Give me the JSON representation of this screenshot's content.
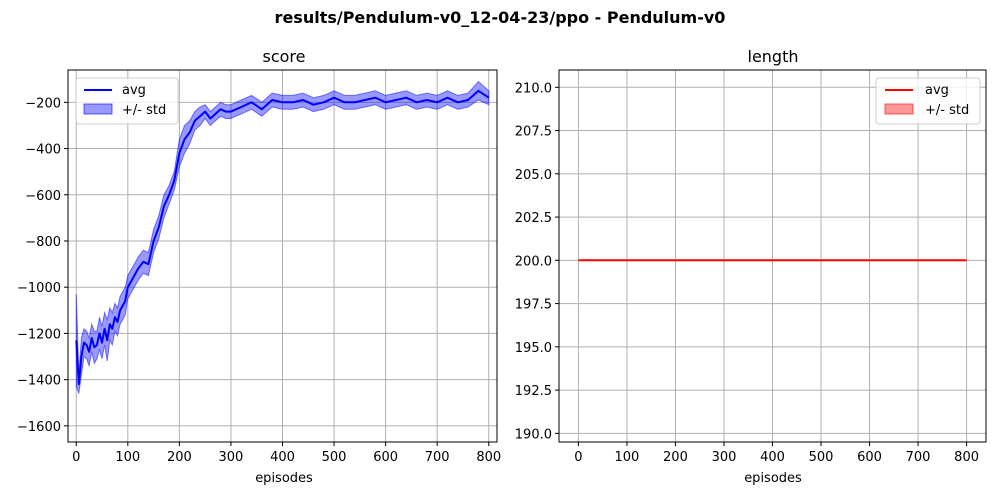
{
  "figure": {
    "suptitle": "results/Pendulum-v0_12-04-23/ppo - Pendulum-v0"
  },
  "colors": {
    "score_line": "#0000ff",
    "score_band": "#0000ff",
    "length_line": "#ff0000",
    "length_band": "#ff0000"
  },
  "chart_data": [
    {
      "type": "line",
      "title": "score",
      "xlabel": "episodes",
      "ylabel": "",
      "xlim": [
        -16,
        816
      ],
      "ylim": [
        -1670,
        -60
      ],
      "xticks": [
        0,
        100,
        200,
        300,
        400,
        500,
        600,
        700,
        800
      ],
      "yticks": [
        -1600,
        -1400,
        -1200,
        -1000,
        -800,
        -600,
        -400,
        -200
      ],
      "grid": true,
      "legend_position": "top-left",
      "legend": [
        {
          "label": "avg",
          "kind": "line"
        },
        {
          "label": "+/- std",
          "kind": "band"
        }
      ],
      "x": [
        0,
        5,
        10,
        15,
        20,
        25,
        30,
        35,
        40,
        45,
        50,
        55,
        60,
        65,
        70,
        75,
        80,
        85,
        90,
        95,
        100,
        110,
        120,
        130,
        140,
        150,
        160,
        170,
        180,
        190,
        200,
        210,
        220,
        230,
        240,
        250,
        260,
        270,
        280,
        290,
        300,
        320,
        340,
        360,
        380,
        400,
        420,
        440,
        460,
        480,
        500,
        520,
        540,
        560,
        580,
        600,
        620,
        640,
        660,
        680,
        700,
        720,
        740,
        760,
        780,
        800
      ],
      "avg": [
        -1230,
        -1420,
        -1300,
        -1240,
        -1250,
        -1280,
        -1220,
        -1260,
        -1250,
        -1200,
        -1240,
        -1180,
        -1230,
        -1160,
        -1180,
        -1130,
        -1150,
        -1100,
        -1080,
        -1060,
        -1000,
        -960,
        -920,
        -890,
        -900,
        -800,
        -740,
        -650,
        -600,
        -540,
        -420,
        -360,
        -330,
        -280,
        -260,
        -240,
        -270,
        -250,
        -230,
        -240,
        -240,
        -220,
        -200,
        -230,
        -190,
        -200,
        -200,
        -190,
        -210,
        -200,
        -180,
        -200,
        -200,
        -190,
        -180,
        -200,
        -190,
        -180,
        -200,
        -190,
        -200,
        -180,
        -200,
        -190,
        -150,
        -180
      ],
      "std": [
        200,
        40,
        80,
        60,
        60,
        60,
        60,
        70,
        60,
        70,
        70,
        70,
        90,
        70,
        70,
        60,
        60,
        60,
        60,
        60,
        50,
        50,
        50,
        50,
        50,
        50,
        50,
        50,
        40,
        40,
        60,
        60,
        50,
        40,
        40,
        30,
        30,
        30,
        30,
        30,
        30,
        30,
        30,
        30,
        30,
        30,
        30,
        30,
        30,
        30,
        30,
        30,
        30,
        30,
        30,
        30,
        30,
        30,
        30,
        30,
        30,
        30,
        30,
        30,
        40,
        30
      ]
    },
    {
      "type": "line",
      "title": "length",
      "xlabel": "episodes",
      "ylabel": "",
      "xlim": [
        -40,
        840
      ],
      "ylim": [
        189.5,
        211.0
      ],
      "xticks": [
        0,
        100,
        200,
        300,
        400,
        500,
        600,
        700,
        800
      ],
      "yticks": [
        "190.0",
        "192.5",
        "195.0",
        "197.5",
        "200.0",
        "202.5",
        "205.0",
        "207.5",
        "210.0"
      ],
      "grid": true,
      "legend_position": "top-right",
      "legend": [
        {
          "label": "avg",
          "kind": "line"
        },
        {
          "label": "+/- std",
          "kind": "band"
        }
      ],
      "x": [
        0,
        800
      ],
      "avg": [
        200,
        200
      ],
      "std": [
        0,
        0
      ]
    }
  ]
}
